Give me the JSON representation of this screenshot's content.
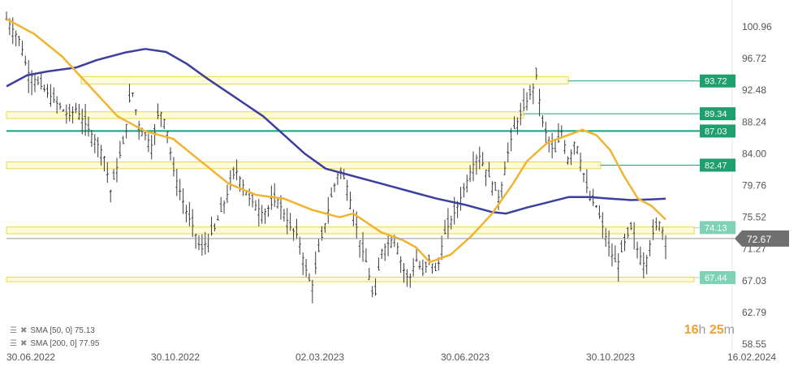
{
  "chart_data": {
    "type": "candlestick",
    "x_ticks": [
      "30.06.2022",
      "30.10.2022",
      "02.03.2023",
      "30.06.2023",
      "30.10.2023",
      "16.02.2024"
    ],
    "y_ticks": [
      "100.96",
      "96.72",
      "92.48",
      "88.24",
      "84.00",
      "79.76",
      "75.52",
      "71.27",
      "67.03",
      "62.79",
      "58.55"
    ],
    "ylim": [
      58.55,
      102.5
    ],
    "current_price": "72.67",
    "levels": [
      {
        "label": "93.72",
        "value": 93.72,
        "zone": [
          93.3,
          94.3
        ],
        "line_color": "#1aa37a",
        "badge_color": "#1f9e6e"
      },
      {
        "label": "89.34",
        "value": 89.34,
        "zone": [
          88.7,
          89.6
        ],
        "line_color": "#1aa37a",
        "badge_color": "#1f9e6e"
      },
      {
        "label": "87.03",
        "value": 87.03,
        "zone": null,
        "line_color": "#11a37a",
        "badge_color": "#1f9e6e"
      },
      {
        "label": "82.47",
        "value": 82.47,
        "zone": [
          82.0,
          82.9
        ],
        "line_color": "#1aa37a",
        "badge_color": "#1f9e6e"
      },
      {
        "label": "74.13",
        "value": 74.13,
        "zone": [
          73.3,
          74.2
        ],
        "line_color": "#9bd9c4",
        "badge_color": "#7fd3b5"
      },
      {
        "label": "67.44",
        "value": 67.44,
        "zone": [
          66.9,
          67.5
        ],
        "line_color": "#9bd9c4",
        "badge_color": "#7fd3b5"
      }
    ],
    "sma_fast": {
      "name": "SMA [50, 0]",
      "value": "75.13",
      "color": "#f1b431",
      "points": [
        [
          0,
          102
        ],
        [
          0.04,
          100
        ],
        [
          0.08,
          97
        ],
        [
          0.12,
          93
        ],
        [
          0.16,
          89
        ],
        [
          0.2,
          87
        ],
        [
          0.24,
          86
        ],
        [
          0.28,
          83
        ],
        [
          0.32,
          80
        ],
        [
          0.36,
          78.5
        ],
        [
          0.4,
          78
        ],
        [
          0.44,
          76.5
        ],
        [
          0.48,
          75.5
        ],
        [
          0.5,
          76
        ],
        [
          0.54,
          73.5
        ],
        [
          0.57,
          72.5
        ],
        [
          0.59,
          71.5
        ],
        [
          0.61,
          69.5
        ],
        [
          0.64,
          70.5
        ],
        [
          0.67,
          73
        ],
        [
          0.7,
          76
        ],
        [
          0.73,
          80
        ],
        [
          0.75,
          83
        ],
        [
          0.78,
          85.5
        ],
        [
          0.81,
          86.5
        ],
        [
          0.83,
          87.2
        ],
        [
          0.85,
          86.5
        ],
        [
          0.87,
          84.5
        ],
        [
          0.89,
          81
        ],
        [
          0.91,
          78
        ],
        [
          0.93,
          77
        ],
        [
          0.95,
          75.2
        ]
      ]
    },
    "sma_slow": {
      "name": "SMA [200, 0]",
      "value": "77.95",
      "color": "#3d3f9f",
      "points": [
        [
          0,
          93
        ],
        [
          0.03,
          94.5
        ],
        [
          0.06,
          95
        ],
        [
          0.1,
          95.5
        ],
        [
          0.13,
          96.5
        ],
        [
          0.17,
          97.5
        ],
        [
          0.2,
          98
        ],
        [
          0.23,
          97.6
        ],
        [
          0.26,
          96
        ],
        [
          0.29,
          94
        ],
        [
          0.33,
          91.5
        ],
        [
          0.37,
          89
        ],
        [
          0.4,
          86.5
        ],
        [
          0.43,
          84
        ],
        [
          0.46,
          82
        ],
        [
          0.5,
          81
        ],
        [
          0.54,
          80
        ],
        [
          0.58,
          79
        ],
        [
          0.62,
          78
        ],
        [
          0.66,
          77.2
        ],
        [
          0.7,
          76.2
        ],
        [
          0.72,
          76
        ],
        [
          0.75,
          76.8
        ],
        [
          0.78,
          77.5
        ],
        [
          0.81,
          78.2
        ],
        [
          0.84,
          78.2
        ],
        [
          0.87,
          78
        ],
        [
          0.9,
          77.8
        ],
        [
          0.93,
          77.9
        ],
        [
          0.95,
          78
        ]
      ]
    },
    "price_path": [
      [
        0,
        102
      ],
      [
        0.02,
        99
      ],
      [
        0.03,
        95
      ],
      [
        0.05,
        93
      ],
      [
        0.07,
        91
      ],
      [
        0.09,
        89
      ],
      [
        0.1,
        90
      ],
      [
        0.12,
        87
      ],
      [
        0.14,
        84
      ],
      [
        0.15,
        79
      ],
      [
        0.17,
        86
      ],
      [
        0.18,
        93
      ],
      [
        0.19,
        88
      ],
      [
        0.21,
        85
      ],
      [
        0.22,
        90
      ],
      [
        0.23,
        88
      ],
      [
        0.24,
        82
      ],
      [
        0.26,
        76
      ],
      [
        0.27,
        74
      ],
      [
        0.28,
        71
      ],
      [
        0.3,
        74
      ],
      [
        0.32,
        79
      ],
      [
        0.33,
        82
      ],
      [
        0.35,
        78
      ],
      [
        0.37,
        76
      ],
      [
        0.39,
        78
      ],
      [
        0.41,
        74
      ],
      [
        0.42,
        73
      ],
      [
        0.43,
        69
      ],
      [
        0.44,
        66
      ],
      [
        0.45,
        71
      ],
      [
        0.46,
        75
      ],
      [
        0.47,
        79
      ],
      [
        0.48,
        82
      ],
      [
        0.49,
        80
      ],
      [
        0.5,
        76
      ],
      [
        0.51,
        72
      ],
      [
        0.52,
        69
      ],
      [
        0.53,
        64
      ],
      [
        0.54,
        71
      ],
      [
        0.56,
        73
      ],
      [
        0.57,
        69
      ],
      [
        0.58,
        67
      ],
      [
        0.59,
        70
      ],
      [
        0.6,
        68
      ],
      [
        0.61,
        70
      ],
      [
        0.62,
        68
      ],
      [
        0.63,
        73
      ],
      [
        0.65,
        77
      ],
      [
        0.67,
        82
      ],
      [
        0.68,
        84
      ],
      [
        0.7,
        80
      ],
      [
        0.71,
        78
      ],
      [
        0.72,
        83
      ],
      [
        0.73,
        87
      ],
      [
        0.74,
        89
      ],
      [
        0.75,
        91
      ],
      [
        0.76,
        93
      ],
      [
        0.765,
        95
      ],
      [
        0.77,
        89
      ],
      [
        0.78,
        86
      ],
      [
        0.79,
        84
      ],
      [
        0.8,
        87
      ],
      [
        0.81,
        83
      ],
      [
        0.82,
        86
      ],
      [
        0.83,
        82
      ],
      [
        0.84,
        78
      ],
      [
        0.85,
        77
      ],
      [
        0.86,
        74
      ],
      [
        0.87,
        71
      ],
      [
        0.88,
        69
      ],
      [
        0.89,
        72
      ],
      [
        0.9,
        74
      ],
      [
        0.91,
        71
      ],
      [
        0.92,
        69
      ],
      [
        0.93,
        73
      ],
      [
        0.94,
        75
      ],
      [
        0.95,
        72.7
      ]
    ],
    "legend": [
      {
        "label": "SMA [50, 0] 75.13"
      },
      {
        "label": "SMA [200, 0] 77.95"
      }
    ],
    "countdown": {
      "h": "16",
      "hu": "h",
      "m": "25",
      "mu": "m"
    }
  }
}
